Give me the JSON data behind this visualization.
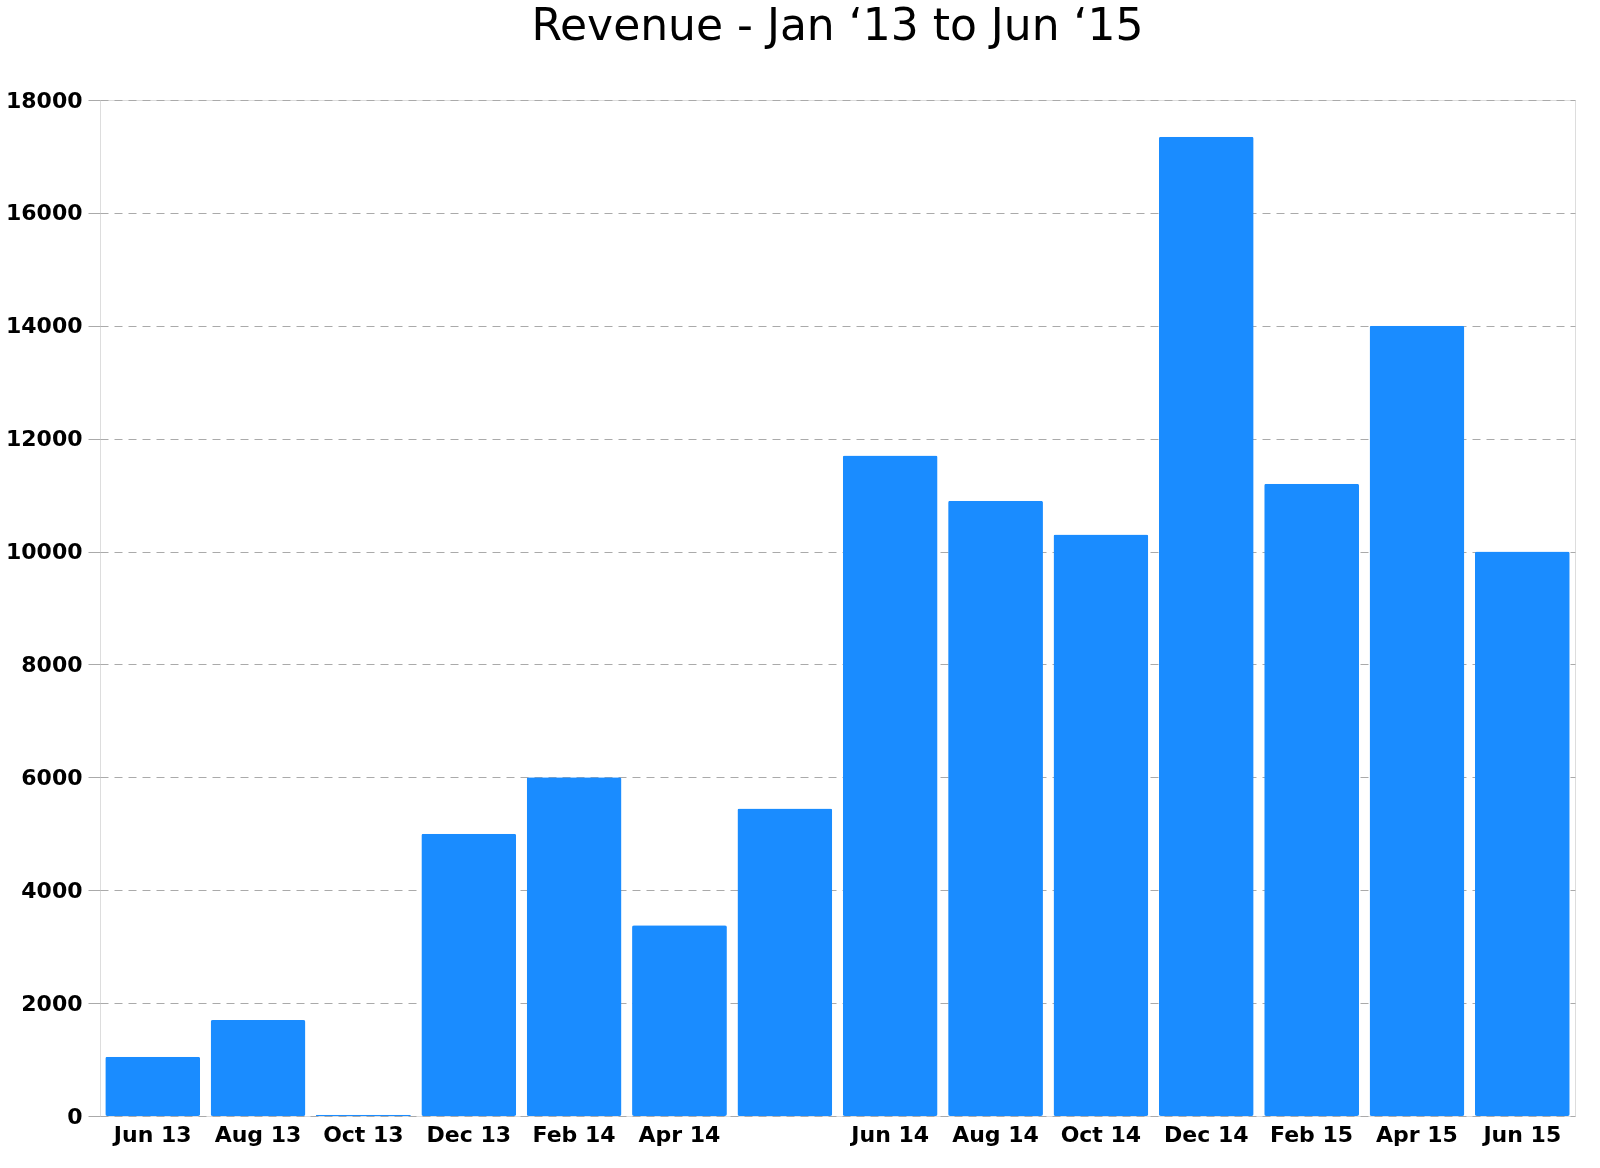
{
  "chart_data": {
    "type": "bar",
    "title": "Revenue - Jan ‘13 to Jun ‘15",
    "categories": [
      "Jun 13",
      "Aug 13",
      "Oct 13",
      "Dec 13",
      "Feb 14",
      "Apr 14",
      null,
      "Jun 14",
      "Aug 14",
      "Oct 14",
      "Dec 14",
      "Feb 15",
      "Apr 15",
      "Jun 15"
    ],
    "values": [
      1050,
      1700,
      20,
      5000,
      6000,
      3380,
      5450,
      11700,
      10900,
      10300,
      17350,
      11200,
      14000,
      10000
    ],
    "color": "#1a8cff",
    "ylim": [
      0,
      18000
    ],
    "yticks": [
      0,
      2000,
      4000,
      6000,
      8000,
      10000,
      12000,
      14000,
      16000,
      18000
    ],
    "grid": "y"
  }
}
